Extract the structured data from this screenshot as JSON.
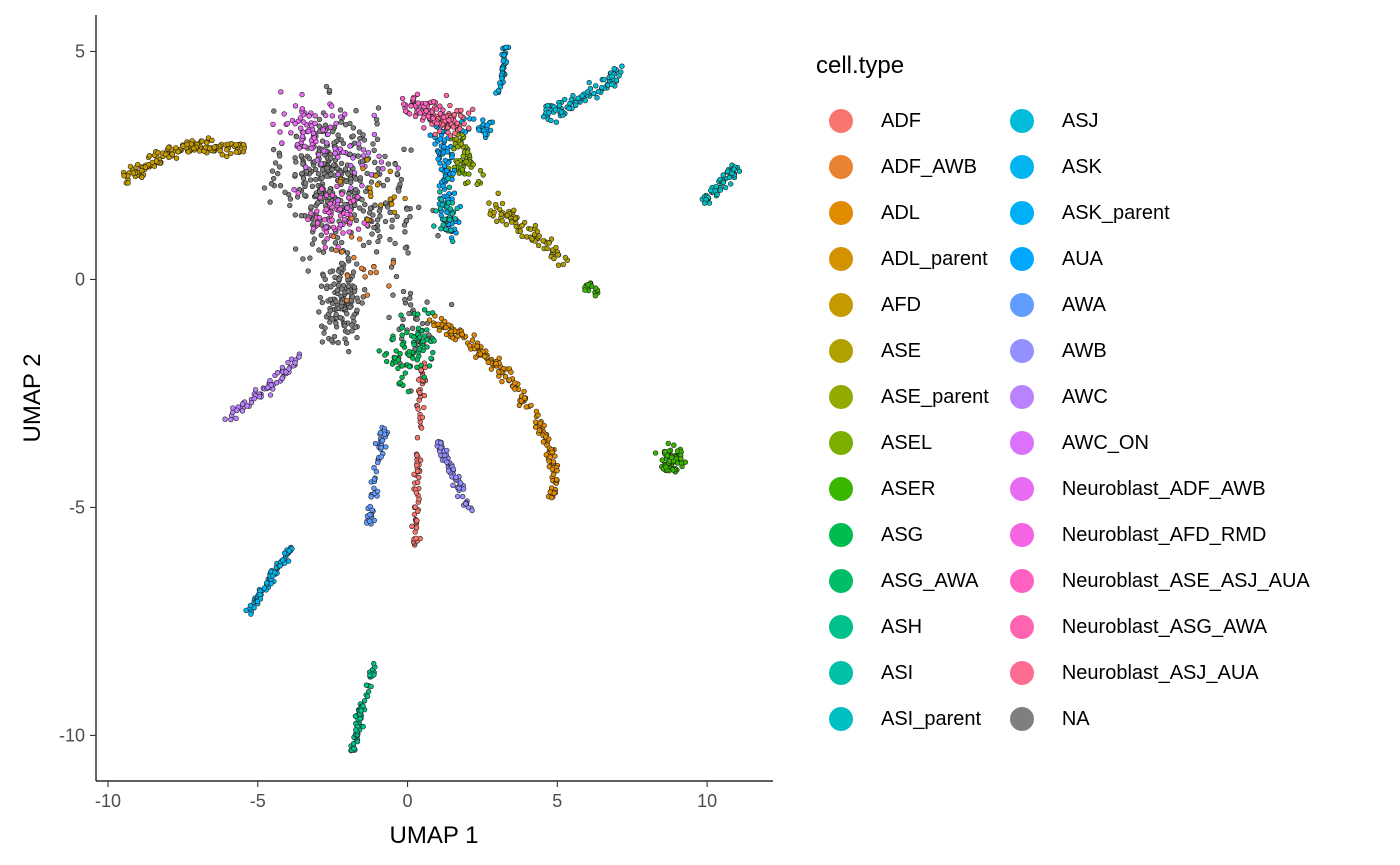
{
  "chart_data": {
    "type": "scatter",
    "title": "",
    "xlabel": "UMAP 1",
    "ylabel": "UMAP 2",
    "xlim": [
      -10.4,
      12.2
    ],
    "ylim": [
      -11,
      5.8
    ],
    "x_ticks": [
      -10,
      -5,
      0,
      5,
      10
    ],
    "y_ticks": [
      -10,
      -5,
      0,
      5
    ],
    "x_tick_labels": [
      "-10",
      "-5",
      "0",
      "5",
      "10"
    ],
    "y_tick_labels": [
      "-10",
      "-5",
      "0",
      "5"
    ],
    "grid": false,
    "legend": {
      "title": "cell.type",
      "placement": "right",
      "columns": 2,
      "entries": [
        {
          "name": "ADF",
          "color": "#F8766D"
        },
        {
          "name": "ADF_AWB",
          "color": "#EA8331"
        },
        {
          "name": "ADL",
          "color": "#E08B00"
        },
        {
          "name": "ADL_parent",
          "color": "#D39200"
        },
        {
          "name": "AFD",
          "color": "#C49A00"
        },
        {
          "name": "ASE",
          "color": "#B0A000"
        },
        {
          "name": "ASE_parent",
          "color": "#93AA00"
        },
        {
          "name": "ASEL",
          "color": "#7CAE00"
        },
        {
          "name": "ASER",
          "color": "#39B600"
        },
        {
          "name": "ASG",
          "color": "#00BB4E"
        },
        {
          "name": "ASG_AWA",
          "color": "#00BE67"
        },
        {
          "name": "ASH",
          "color": "#00C08B"
        },
        {
          "name": "ASI",
          "color": "#00C0A7"
        },
        {
          "name": "ASI_parent",
          "color": "#00BFC4"
        },
        {
          "name": "ASJ",
          "color": "#00BCD8"
        },
        {
          "name": "ASK",
          "color": "#00B4EF"
        },
        {
          "name": "ASK_parent",
          "color": "#00B0F6"
        },
        {
          "name": "AUA",
          "color": "#00A9FF"
        },
        {
          "name": "AWA",
          "color": "#619CFF"
        },
        {
          "name": "AWB",
          "color": "#9590FF"
        },
        {
          "name": "AWC",
          "color": "#B983FF"
        },
        {
          "name": "AWC_ON",
          "color": "#DB72FB"
        },
        {
          "name": "Neuroblast_ADF_AWB",
          "color": "#E76BF3"
        },
        {
          "name": "Neuroblast_AFD_RMD",
          "color": "#F564E3"
        },
        {
          "name": "Neuroblast_ASE_ASJ_AUA",
          "color": "#FF61C3"
        },
        {
          "name": "Neuroblast_ASG_AWA",
          "color": "#FF64B0"
        },
        {
          "name": "Neuroblast_ASJ_AUA",
          "color": "#FF6C91"
        },
        {
          "name": "NA",
          "color": "#7F7F7F"
        }
      ]
    },
    "series": [
      {
        "name": "AFD",
        "shape": "curve",
        "points": [
          [
            -9.4,
            2.2
          ],
          [
            -8.2,
            2.7
          ],
          [
            -7.1,
            2.95
          ],
          [
            -6.0,
            2.9
          ],
          [
            -5.4,
            2.9
          ]
        ],
        "n": 160,
        "spread": 0.08
      },
      {
        "name": "ASE",
        "shape": "curve",
        "points": [
          [
            2.8,
            1.55
          ],
          [
            3.8,
            1.2
          ],
          [
            4.6,
            0.8
          ],
          [
            5.3,
            0.35
          ]
        ],
        "n": 80,
        "spread": 0.1
      },
      {
        "name": "ASER",
        "shape": "curve",
        "points": [
          [
            5.9,
            -0.05
          ],
          [
            6.3,
            -0.3
          ]
        ],
        "n": 18,
        "spread": 0.06
      },
      {
        "name": "ASER",
        "shape": "blob",
        "points": [
          [
            8.8,
            -3.95
          ]
        ],
        "rx": 0.35,
        "ry": 0.22,
        "n": 80
      },
      {
        "name": "ASJ",
        "shape": "curve",
        "points": [
          [
            4.6,
            3.6
          ],
          [
            5.7,
            3.9
          ],
          [
            6.7,
            4.35
          ],
          [
            7.2,
            4.6
          ]
        ],
        "n": 90,
        "spread": 0.09
      },
      {
        "name": "ASI_parent",
        "shape": "curve",
        "points": [
          [
            9.9,
            1.7
          ],
          [
            10.5,
            2.1
          ],
          [
            11.0,
            2.45
          ]
        ],
        "n": 60,
        "spread": 0.08
      },
      {
        "name": "ASK",
        "shape": "curve",
        "points": [
          [
            3.0,
            4.0
          ],
          [
            3.2,
            4.6
          ],
          [
            3.25,
            5.1
          ]
        ],
        "n": 40,
        "spread": 0.05
      },
      {
        "name": "ASK",
        "shape": "curve",
        "points": [
          [
            -5.3,
            -7.3
          ],
          [
            -4.6,
            -6.6
          ],
          [
            -3.9,
            -5.9
          ]
        ],
        "n": 70,
        "spread": 0.06
      },
      {
        "name": "AWC",
        "shape": "curve",
        "points": [
          [
            -6.0,
            -3.05
          ],
          [
            -5.0,
            -2.6
          ],
          [
            -3.6,
            -1.7
          ]
        ],
        "n": 70,
        "spread": 0.07
      },
      {
        "name": "ASH",
        "shape": "curve",
        "points": [
          [
            -1.8,
            -10.3
          ],
          [
            -1.5,
            -9.3
          ],
          [
            -1.1,
            -8.5
          ]
        ],
        "n": 70,
        "spread": 0.06
      },
      {
        "name": "AWA",
        "shape": "curve",
        "points": [
          [
            -1.3,
            -5.4
          ],
          [
            -1.1,
            -4.4
          ],
          [
            -0.85,
            -3.5
          ],
          [
            -0.7,
            -3.3
          ]
        ],
        "n": 55,
        "spread": 0.08
      },
      {
        "name": "AWB",
        "shape": "curve",
        "points": [
          [
            1.0,
            -3.5
          ],
          [
            1.4,
            -4.1
          ],
          [
            1.8,
            -4.6
          ],
          [
            2.1,
            -5.15
          ]
        ],
        "n": 60,
        "spread": 0.07
      },
      {
        "name": "ADF",
        "shape": "curve",
        "points": [
          [
            0.25,
            -5.9
          ],
          [
            0.3,
            -4.6
          ],
          [
            0.4,
            -3.0
          ],
          [
            0.55,
            -1.7
          ]
        ],
        "n": 80,
        "spread": 0.07
      },
      {
        "name": "ADL",
        "shape": "curve",
        "points": [
          [
            0.8,
            -0.9
          ],
          [
            2.0,
            -1.3
          ],
          [
            3.3,
            -2.1
          ],
          [
            4.3,
            -3.0
          ],
          [
            4.9,
            -4.0
          ],
          [
            4.85,
            -4.75
          ]
        ],
        "n": 190,
        "spread": 0.08
      },
      {
        "name": "ASG",
        "shape": "blob",
        "points": [
          [
            -0.1,
            -1.7
          ]
        ],
        "rx": 0.5,
        "ry": 0.5,
        "n": 40
      },
      {
        "name": "ASG_AWA",
        "shape": "blob",
        "points": [
          [
            0.5,
            -1.3
          ]
        ],
        "rx": 0.6,
        "ry": 0.5,
        "n": 40
      },
      {
        "name": "ASEL",
        "shape": "blob",
        "points": [
          [
            1.9,
            2.6
          ]
        ],
        "rx": 0.4,
        "ry": 0.4,
        "n": 30
      },
      {
        "name": "ASE_parent",
        "shape": "curve",
        "points": [
          [
            1.5,
            3.2
          ],
          [
            2.0,
            2.6
          ],
          [
            2.4,
            2.2
          ]
        ],
        "n": 30,
        "spread": 0.12
      },
      {
        "name": "AUA",
        "shape": "curve",
        "points": [
          [
            1.1,
            3.4
          ],
          [
            1.3,
            2.2
          ],
          [
            1.4,
            1.0
          ]
        ],
        "n": 100,
        "spread": 0.14
      },
      {
        "name": "ASK_parent",
        "shape": "curve",
        "points": [
          [
            1.7,
            3.4
          ],
          [
            2.3,
            3.35
          ],
          [
            2.8,
            3.3
          ]
        ],
        "n": 25,
        "spread": 0.12
      },
      {
        "name": "ASI",
        "shape": "blob",
        "points": [
          [
            1.3,
            1.6
          ]
        ],
        "rx": 0.35,
        "ry": 0.6,
        "n": 30
      },
      {
        "name": "Neuroblast_ASJ_AUA",
        "shape": "blob",
        "points": [
          [
            1.4,
            3.5
          ]
        ],
        "rx": 0.55,
        "ry": 0.25,
        "n": 60
      },
      {
        "name": "Neuroblast_ASG_AWA",
        "shape": "blob",
        "points": [
          [
            0.7,
            3.6
          ]
        ],
        "rx": 0.45,
        "ry": 0.25,
        "n": 40
      },
      {
        "name": "Neuroblast_ASE_ASJ_AUA",
        "shape": "blob",
        "points": [
          [
            0.2,
            3.8
          ]
        ],
        "rx": 0.35,
        "ry": 0.2,
        "n": 25
      },
      {
        "name": "Neuroblast_AFD_RMD",
        "shape": "blob",
        "points": [
          [
            -2.3,
            1.4
          ]
        ],
        "rx": 1.0,
        "ry": 0.6,
        "n": 60
      },
      {
        "name": "Neuroblast_ADF_AWB",
        "shape": "blob",
        "points": [
          [
            -3.3,
            3.4
          ]
        ],
        "rx": 0.9,
        "ry": 0.5,
        "n": 60
      },
      {
        "name": "AWC_ON",
        "shape": "blob",
        "points": [
          [
            -2.0,
            2.6
          ]
        ],
        "rx": 1.5,
        "ry": 0.8,
        "n": 45
      },
      {
        "name": "ADF_AWB",
        "shape": "blob",
        "points": [
          [
            -1.6,
            0.5
          ]
        ],
        "rx": 1.0,
        "ry": 0.8,
        "n": 20
      },
      {
        "name": "ADL_parent",
        "shape": "blob",
        "points": [
          [
            -1.0,
            1.9
          ]
        ],
        "rx": 1.0,
        "ry": 0.7,
        "n": 18
      },
      {
        "name": "NA",
        "shape": "blob",
        "points": [
          [
            -2.6,
            2.3
          ]
        ],
        "rx": 1.4,
        "ry": 1.3,
        "n": 320
      },
      {
        "name": "NA",
        "shape": "blob",
        "points": [
          [
            -2.2,
            -0.4
          ]
        ],
        "rx": 0.75,
        "ry": 1.0,
        "n": 150
      },
      {
        "name": "NA",
        "shape": "blob",
        "points": [
          [
            -0.6,
            1.6
          ]
        ],
        "rx": 1.0,
        "ry": 1.3,
        "n": 70
      },
      {
        "name": "NA",
        "shape": "blob",
        "points": [
          [
            0.2,
            -1.0
          ]
        ],
        "rx": 0.8,
        "ry": 0.8,
        "n": 40
      }
    ]
  }
}
